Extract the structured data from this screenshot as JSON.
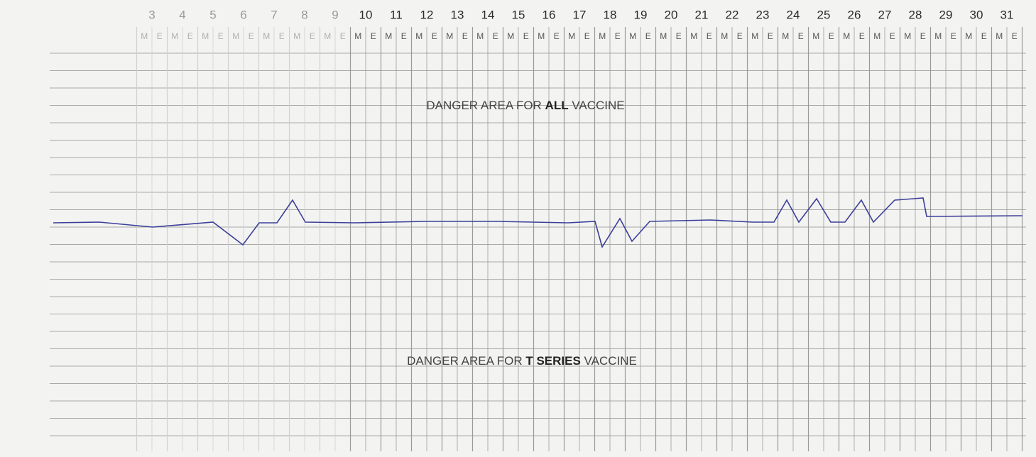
{
  "days": [
    "3",
    "4",
    "5",
    "6",
    "7",
    "8",
    "9",
    "10",
    "11",
    "12",
    "13",
    "14",
    "15",
    "16",
    "17",
    "18",
    "19",
    "20",
    "21",
    "22",
    "23",
    "24",
    "25",
    "26",
    "27",
    "28",
    "29",
    "30",
    "31"
  ],
  "shifts": [
    "M",
    "E"
  ],
  "annotations": [
    {
      "parts": [
        "DANGER AREA FOR ",
        "ALL",
        " VACCINE"
      ]
    },
    {
      "parts": [
        "DANGER AREA FOR ",
        "T SERIES",
        " VACCINE"
      ]
    }
  ]
}
